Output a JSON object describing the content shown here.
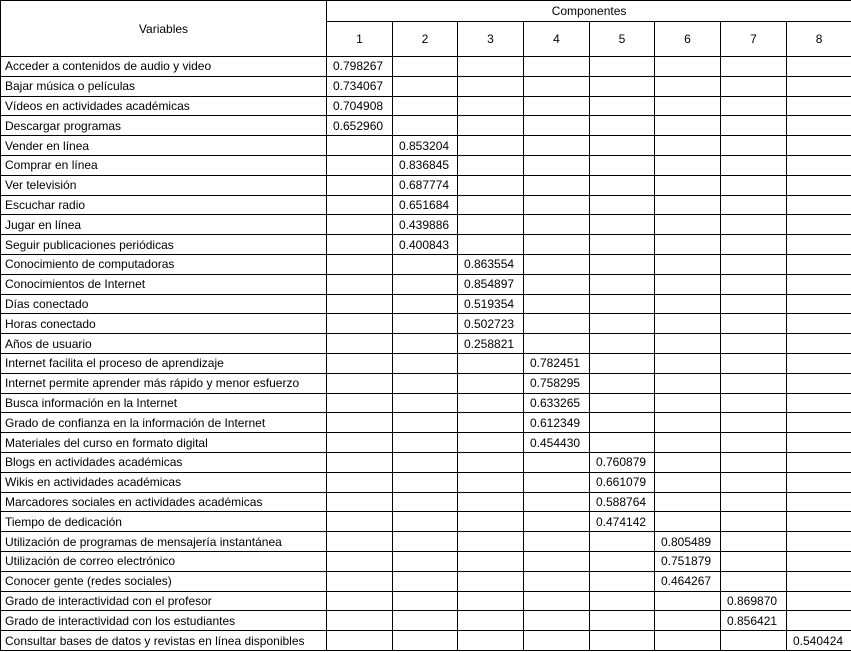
{
  "table": {
    "header": {
      "title": "Variables",
      "group": "Componentes",
      "columns": [
        "1",
        "2",
        "3",
        "4",
        "5",
        "6",
        "7",
        "8"
      ]
    },
    "rows": [
      [
        "Acceder a contenidos de audio y video",
        "0.798267",
        null,
        null,
        null,
        null,
        null,
        null,
        null
      ],
      [
        "Bajar música o películas",
        "0.734067",
        null,
        null,
        null,
        null,
        null,
        null,
        null
      ],
      [
        "Vídeos en actividades académicas",
        "0.704908",
        null,
        null,
        null,
        null,
        null,
        null,
        null
      ],
      [
        "Descargar programas",
        "0.652960",
        null,
        null,
        null,
        null,
        null,
        null,
        null
      ],
      [
        "Vender en línea",
        null,
        "0.853204",
        null,
        null,
        null,
        null,
        null,
        null
      ],
      [
        "Comprar en línea",
        null,
        "0.836845",
        null,
        null,
        null,
        null,
        null,
        null
      ],
      [
        "Ver televisión",
        null,
        "0.687774",
        null,
        null,
        null,
        null,
        null,
        null
      ],
      [
        "Escuchar radio",
        null,
        "0.651684",
        null,
        null,
        null,
        null,
        null,
        null
      ],
      [
        "Jugar en línea",
        null,
        "0.439886",
        null,
        null,
        null,
        null,
        null,
        null
      ],
      [
        "Seguir publicaciones periódicas",
        null,
        "0.400843",
        null,
        null,
        null,
        null,
        null,
        null
      ],
      [
        "Conocimiento de computadoras",
        null,
        null,
        "0.863554",
        null,
        null,
        null,
        null,
        null
      ],
      [
        "Conocimientos de Internet",
        null,
        null,
        "0.854897",
        null,
        null,
        null,
        null,
        null
      ],
      [
        "Días conectado",
        null,
        null,
        "0.519354",
        null,
        null,
        null,
        null,
        null
      ],
      [
        "Horas conectado",
        null,
        null,
        "0.502723",
        null,
        null,
        null,
        null,
        null
      ],
      [
        "Años de usuario",
        null,
        null,
        "0.258821",
        null,
        null,
        null,
        null,
        null
      ],
      [
        "Internet facilita el proceso de aprendizaje",
        null,
        null,
        null,
        "0.782451",
        null,
        null,
        null,
        null
      ],
      [
        "Internet permite aprender más rápido y menor esfuerzo",
        null,
        null,
        null,
        "0.758295",
        null,
        null,
        null,
        null
      ],
      [
        "Busca información en la Internet",
        null,
        null,
        null,
        "0.633265",
        null,
        null,
        null,
        null
      ],
      [
        "Grado de confianza en la información de Internet",
        null,
        null,
        null,
        "0.612349",
        null,
        null,
        null,
        null
      ],
      [
        "Materiales del curso en formato digital",
        null,
        null,
        null,
        "0.454430",
        null,
        null,
        null,
        null
      ],
      [
        "Blogs en actividades académicas",
        null,
        null,
        null,
        null,
        "0.760879",
        null,
        null,
        null
      ],
      [
        "Wikis en actividades académicas",
        null,
        null,
        null,
        null,
        "0.661079",
        null,
        null,
        null
      ],
      [
        "Marcadores sociales en actividades académicas",
        null,
        null,
        null,
        null,
        "0.588764",
        null,
        null,
        null
      ],
      [
        "Tiempo de dedicación",
        null,
        null,
        null,
        null,
        "0.474142",
        null,
        null,
        null
      ],
      [
        "Utilización de programas de mensajería instantánea",
        null,
        null,
        null,
        null,
        null,
        "0.805489",
        null,
        null
      ],
      [
        "Utilización de correo electrónico",
        null,
        null,
        null,
        null,
        null,
        "0.751879",
        null,
        null
      ],
      [
        "Conocer gente (redes sociales)",
        null,
        null,
        null,
        null,
        null,
        "0.464267",
        null,
        null
      ],
      [
        "Grado de interactividad con el profesor",
        null,
        null,
        null,
        null,
        null,
        null,
        "0.869870",
        null
      ],
      [
        "Grado de interactividad con los estudiantes",
        null,
        null,
        null,
        null,
        null,
        null,
        "0.856421",
        null
      ],
      [
        "Consultar bases de datos y revistas en línea disponibles",
        null,
        null,
        null,
        null,
        null,
        null,
        null,
        "0.540424"
      ]
    ]
  }
}
